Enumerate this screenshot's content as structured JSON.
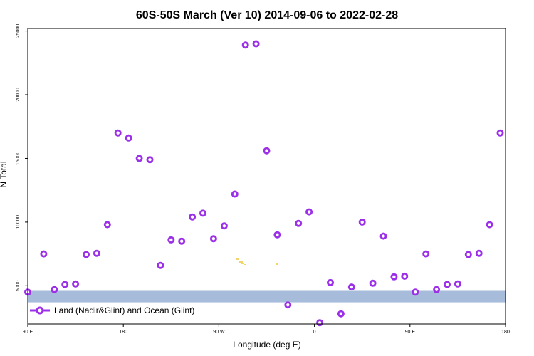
{
  "chart_data": {
    "type": "scatter",
    "title": "60S-50S March (Ver 10)   2014-09-06 to 2022-02-28",
    "xlabel": "Longitude (deg E)",
    "ylabel": "N Total",
    "x_tick_labels": [
      "90 E",
      "180",
      "90 W",
      "0",
      "90 E",
      "180"
    ],
    "y_tick_labels": [
      "5000",
      "10000",
      "15000",
      "20000",
      "25000"
    ],
    "y_ticks": [
      5000,
      10000,
      15000,
      20000,
      25000
    ],
    "ylim": [
      2000,
      25200
    ],
    "grid": false,
    "legend_position": "bottom-left",
    "ocean_band_y_range": [
      3700,
      4600
    ],
    "series": [
      {
        "name": "Land (Nadir&Glint) and Ocean (Glint)",
        "color": "#9b30e8",
        "marker": "ring",
        "points": [
          [
            0,
            4500
          ],
          [
            15,
            7500
          ],
          [
            25,
            4700
          ],
          [
            35,
            5100
          ],
          [
            45,
            5150
          ],
          [
            55,
            7450
          ],
          [
            65,
            7550
          ],
          [
            75,
            9800
          ],
          [
            85,
            17000
          ],
          [
            95,
            16600
          ],
          [
            105,
            15000
          ],
          [
            115,
            14900
          ],
          [
            125,
            6600
          ],
          [
            135,
            8600
          ],
          [
            145,
            8500
          ],
          [
            155,
            10400
          ],
          [
            165,
            10700
          ],
          [
            175,
            8700
          ],
          [
            185,
            9700
          ],
          [
            195,
            12200
          ],
          [
            205,
            23900
          ],
          [
            215,
            24000
          ],
          [
            225,
            15600
          ],
          [
            235,
            9000
          ],
          [
            245,
            3500
          ],
          [
            255,
            9900
          ],
          [
            265,
            10800
          ],
          [
            275,
            2100
          ],
          [
            285,
            5250
          ],
          [
            295,
            2800
          ],
          [
            305,
            4900
          ],
          [
            315,
            10000
          ],
          [
            325,
            5200
          ],
          [
            335,
            8900
          ],
          [
            345,
            5700
          ],
          [
            355,
            5750
          ],
          [
            365,
            4500
          ],
          [
            375,
            7500
          ],
          [
            385,
            4700
          ],
          [
            395,
            5100
          ],
          [
            405,
            5150
          ],
          [
            415,
            7450
          ],
          [
            425,
            7550
          ],
          [
            435,
            9800
          ],
          [
            445,
            17000
          ]
        ]
      }
    ]
  }
}
